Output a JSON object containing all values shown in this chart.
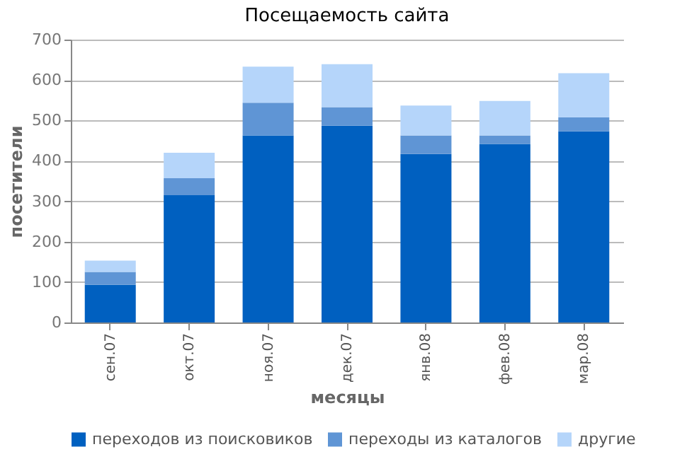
{
  "chart_data": {
    "type": "bar",
    "stacked": true,
    "title": "Посещаемость сайта",
    "xlabel": "месяцы",
    "ylabel": "посетители",
    "categories": [
      "сен.07",
      "окт.07",
      "ноя.07",
      "дек.07",
      "янв.08",
      "фев.08",
      "мар.08"
    ],
    "series": [
      {
        "name": "переходов из поисковиков",
        "color": "#0060c0",
        "values": [
          93,
          315,
          463,
          487,
          417,
          442,
          473
        ]
      },
      {
        "name": "переходы из каталогов",
        "color": "#5f95d5",
        "values": [
          32,
          42,
          81,
          46,
          46,
          21,
          35
        ]
      },
      {
        "name": "другие",
        "color": "#b5d5fa",
        "values": [
          28,
          63,
          89,
          106,
          74,
          85,
          109
        ]
      }
    ],
    "ylim": [
      0,
      700
    ],
    "yticks": [
      0,
      100,
      200,
      300,
      400,
      500,
      600,
      700
    ],
    "grid": "y",
    "legend": "bottom"
  }
}
